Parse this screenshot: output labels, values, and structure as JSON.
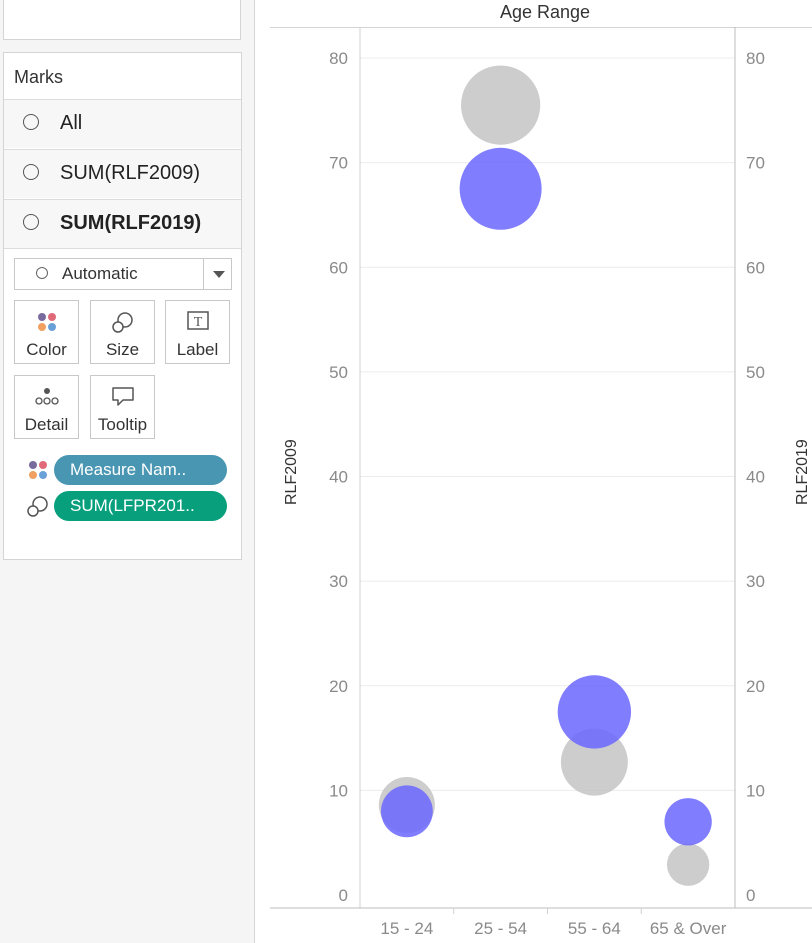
{
  "marks": {
    "title": "Marks",
    "rows": [
      {
        "label": "All",
        "bold": false
      },
      {
        "label": "SUM(RLF2009)",
        "bold": false
      },
      {
        "label": "SUM(RLF2019)",
        "bold": true
      }
    ],
    "mark_type": "Automatic",
    "buttons": {
      "color": "Color",
      "size": "Size",
      "label": "Label",
      "detail": "Detail",
      "tooltip": "Tooltip"
    },
    "pills": {
      "color_field": "Measure Nam..",
      "size_field": "SUM(LFPR201.."
    }
  },
  "chart": {
    "header": "Age Range",
    "left_axis_title": "RLF2009",
    "right_axis_title": "RLF2019",
    "colors": {
      "rlf2009": "#c4c4c4",
      "rlf2019": "#6b66ff",
      "pill_blue": "#4996b2",
      "pill_green": "#08a07c"
    }
  },
  "chart_data": {
    "type": "scatter",
    "title": "",
    "xlabel": "",
    "x_header": "Age Range",
    "categories": [
      "15 - 24",
      "25 - 54",
      "55 - 64",
      "65 & Over"
    ],
    "ylabel": "RLF2009",
    "y2label": "RLF2019",
    "ylim": [
      0,
      80
    ],
    "yticks": [
      0,
      10,
      20,
      30,
      40,
      50,
      60,
      70,
      80
    ],
    "grid": true,
    "series": [
      {
        "name": "RLF2009",
        "color": "#c4c4c4",
        "values": [
          8.6,
          75.5,
          12.7,
          2.9
        ],
        "size": [
          3.5,
          7.0,
          5.0,
          2.0
        ]
      },
      {
        "name": "RLF2019",
        "color": "#6b66ff",
        "values": [
          8.0,
          67.5,
          17.5,
          7.0
        ],
        "size": [
          3.0,
          7.5,
          6.0,
          2.5
        ]
      }
    ]
  }
}
